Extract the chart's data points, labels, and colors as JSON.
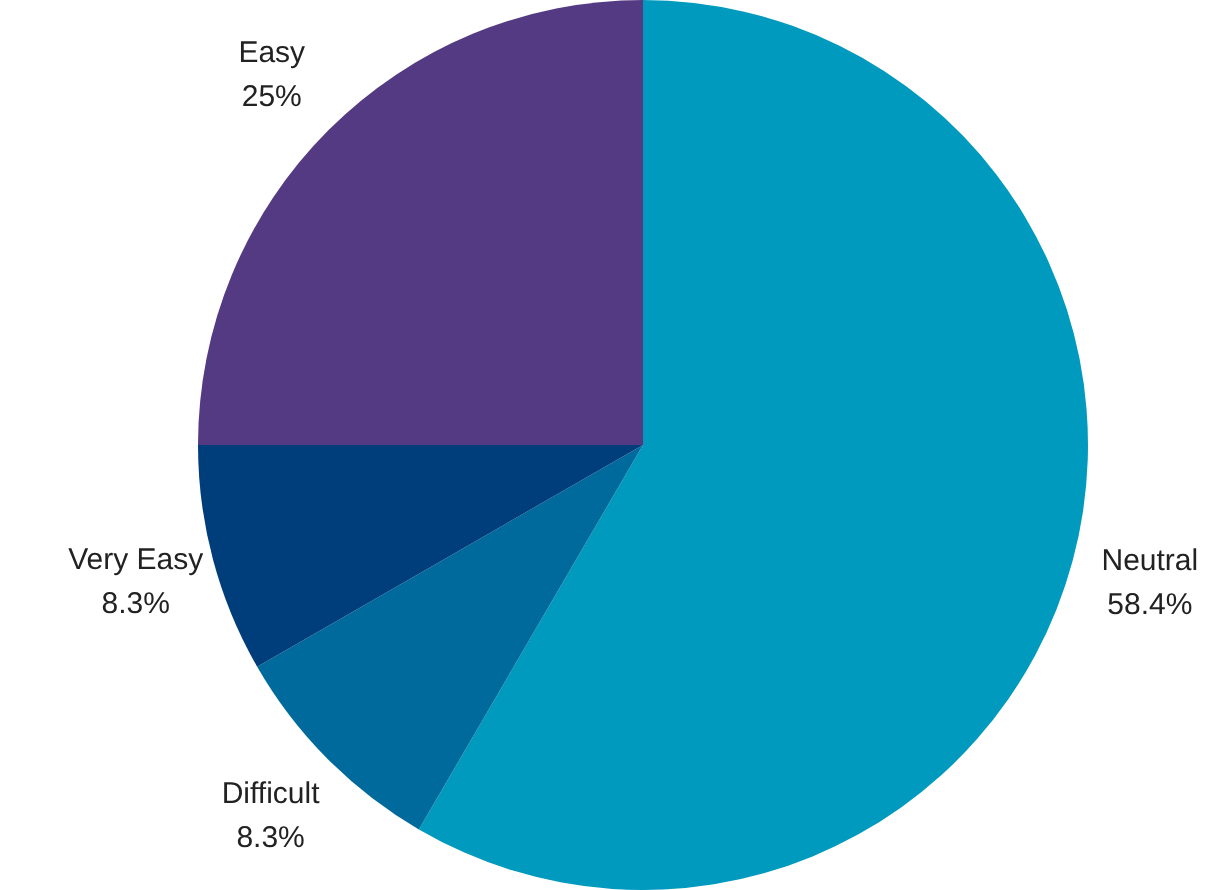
{
  "chart_data": {
    "type": "pie",
    "categories": [
      "Neutral",
      "Difficult",
      "Very Easy",
      "Easy"
    ],
    "values": [
      58.4,
      8.3,
      8.3,
      25
    ],
    "colors": [
      "#009abf",
      "#006a9c",
      "#003d7b",
      "#543a83"
    ],
    "value_labels": [
      "58.4%",
      "8.3%",
      "8.3%",
      "25%"
    ],
    "legend": false
  }
}
